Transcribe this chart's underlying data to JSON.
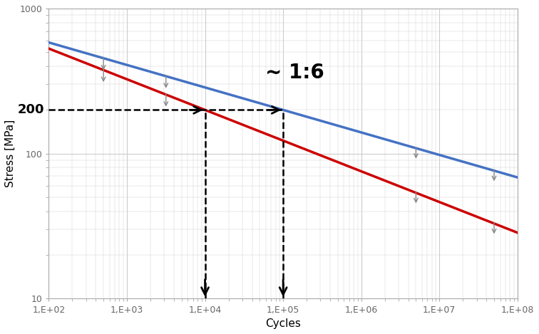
{
  "xlabel": "Cycles",
  "ylabel": "Stress [MPa]",
  "annotation_label": "~ 1:6",
  "stress_200": 200,
  "x_red_200": 10000,
  "x_blue_200": 100000,
  "background_color": "#ffffff",
  "grid_color": "#cccccc",
  "blue_color": "#4472C4",
  "red_color": "#CC0000",
  "b_blue": 0.155,
  "A_blue_ref_N": 100000,
  "A_blue_ref_sigma": 200,
  "b_red": 0.2115,
  "A_red_ref_N": 10000,
  "A_red_ref_sigma": 200,
  "x_ticks": [
    100,
    1000,
    10000,
    100000,
    1000000,
    10000000,
    100000000
  ],
  "x_labels": [
    "1,E+02",
    "1,E+03",
    "1,E+04",
    "1,E+05",
    "1,E+06",
    "1,E+07",
    "1,E+08"
  ],
  "y_ticks": [
    10,
    100,
    1000
  ],
  "y_labels": [
    "10",
    "100",
    "1000"
  ],
  "small_arrows_blue_logx": [
    2.7,
    3.5,
    6.7,
    7.7
  ],
  "small_arrows_red_logx": [
    2.7,
    3.5,
    6.7,
    7.7
  ]
}
